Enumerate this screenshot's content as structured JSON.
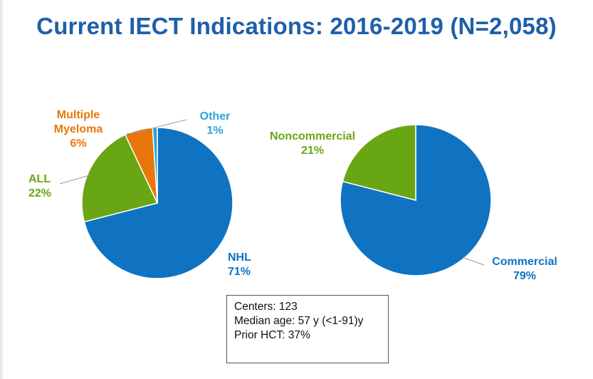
{
  "chart_data": [
    {
      "type": "pie",
      "title": "Current IECT Indications: 2016-2019 (N=2,058)",
      "slices": [
        {
          "name": "NHL",
          "value": 71,
          "label": "71%",
          "color": "#0f73c2"
        },
        {
          "name": "ALL",
          "value": 22,
          "label": "22%",
          "color": "#69a613"
        },
        {
          "name": "Multiple Myeloma",
          "name_lines": [
            "Multiple",
            "Myeloma"
          ],
          "value": 6,
          "label": "6%",
          "color": "#e8760c"
        },
        {
          "name": "Other",
          "value": 1,
          "label": "1%",
          "color": "#2ba4dc"
        }
      ]
    },
    {
      "type": "pie",
      "slices": [
        {
          "name": "Commercial",
          "value": 79,
          "label": "79%",
          "color": "#0f73c2"
        },
        {
          "name": "Noncommercial",
          "value": 21,
          "label": "21%",
          "color": "#69a613"
        }
      ]
    }
  ],
  "info_box": {
    "centers": "Centers: 123",
    "median_age": "Median age: 57 y (<1-91)y",
    "prior_hct": "Prior HCT: 37%"
  },
  "colors": {
    "title": "#1f5fa8",
    "nhl": "#0f73c2",
    "all": "#69a613",
    "mm": "#e8760c",
    "other": "#2ba4dc"
  }
}
